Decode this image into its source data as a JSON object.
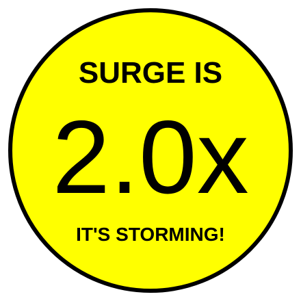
{
  "badge": {
    "headline": "SURGE IS",
    "multiplier": "2.0x",
    "tagline": "IT'S STORMING!",
    "colors": {
      "fill": "#ffff00",
      "border": "#000000",
      "text": "#000000"
    }
  }
}
